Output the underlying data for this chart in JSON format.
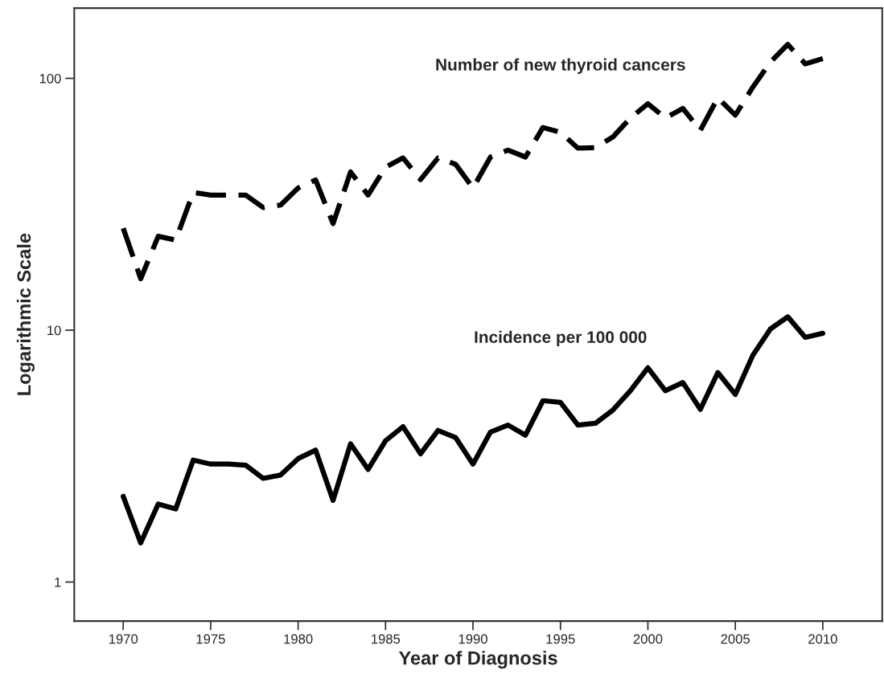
{
  "chart_data": {
    "type": "line",
    "xlabel": "Year of Diagnosis",
    "ylabel": "Logarithmic Scale",
    "log": true,
    "grid": false,
    "legend": false,
    "marker": "none",
    "x": [
      1970,
      1971,
      1972,
      1973,
      1974,
      1975,
      1976,
      1977,
      1978,
      1979,
      1980,
      1981,
      1982,
      1983,
      1984,
      1985,
      1986,
      1987,
      1988,
      1989,
      1990,
      1991,
      1992,
      1993,
      1994,
      1995,
      1996,
      1997,
      1998,
      1999,
      2000,
      2001,
      2002,
      2003,
      2004,
      2005,
      2006,
      2007,
      2008,
      2009,
      2010
    ],
    "xlim": [
      1967.2,
      2013.4
    ],
    "xticks": [
      1970,
      1975,
      1980,
      1985,
      1990,
      1995,
      2000,
      2005,
      2010
    ],
    "ylim": [
      0.7,
      190
    ],
    "yticks": [
      1,
      10,
      100
    ],
    "series": [
      {
        "name": "Number of new thyroid cancers",
        "color": "#000000",
        "line_style": "dashed",
        "values": [
          25.4,
          16.0,
          23.6,
          22.8,
          35.2,
          34.4,
          34.4,
          34.4,
          30.7,
          31.4,
          36.7,
          39.5,
          26.5,
          42.5,
          34.4,
          44.4,
          48.3,
          39.6,
          48.3,
          45.6,
          36.7,
          48.7,
          51.9,
          48.7,
          63.8,
          61.1,
          52.8,
          53.1,
          58.5,
          69.6,
          79.3,
          69.6,
          75.9,
          62.2,
          83.7,
          71.4,
          92.3,
          115.9,
          136.4,
          114.1,
          119.7
        ]
      },
      {
        "name": "Incidence per 100 000",
        "color": "#000000",
        "line_style": "solid",
        "values": [
          2.19,
          1.43,
          2.04,
          1.95,
          3.05,
          2.94,
          2.94,
          2.91,
          2.58,
          2.66,
          3.09,
          3.34,
          2.11,
          3.54,
          2.8,
          3.64,
          4.14,
          3.23,
          4.0,
          3.75,
          2.94,
          3.94,
          4.2,
          3.83,
          5.25,
          5.17,
          4.2,
          4.27,
          4.82,
          5.75,
          7.09,
          5.75,
          6.2,
          4.85,
          6.79,
          5.56,
          7.95,
          10.1,
          11.3,
          9.36,
          9.72
        ]
      }
    ]
  }
}
